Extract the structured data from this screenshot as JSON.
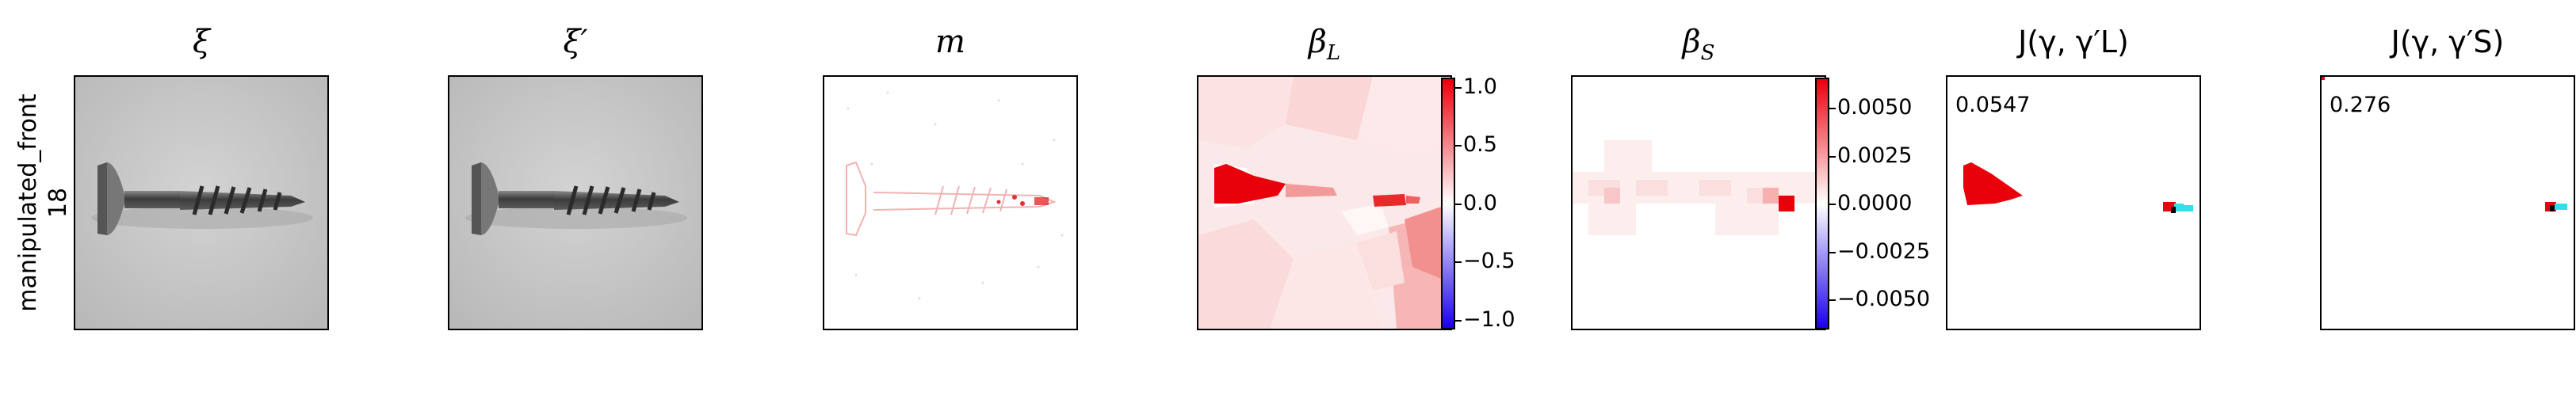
{
  "row_label": {
    "line1": "manipulated_front",
    "line2": "18"
  },
  "panels": [
    {
      "title": "ξ",
      "kind": "image"
    },
    {
      "title": "ξ′",
      "kind": "image"
    },
    {
      "title": "m",
      "kind": "mask"
    },
    {
      "title": "β",
      "sub": "L",
      "kind": "heatmap"
    },
    {
      "title": "β",
      "sub": "S",
      "kind": "heatmap"
    },
    {
      "title": "J(γ, γ′L)",
      "kind": "jaccard",
      "score": "0.0547"
    },
    {
      "title": "J(γ, γ′S)",
      "kind": "jaccard",
      "score": "0.276"
    }
  ],
  "colorbars": {
    "beta_L": {
      "ticks": [
        "1.0",
        "0.5",
        "0.0",
        "−0.5",
        "−1.0"
      ]
    },
    "beta_S": {
      "ticks": [
        "0.0050",
        "0.0025",
        "0.0000",
        "−0.0025",
        "−0.0050"
      ]
    }
  },
  "colors": {
    "positive": "#e8000b",
    "negative": "#1b00e8",
    "highlight_cyan": "#2fe0e8"
  }
}
